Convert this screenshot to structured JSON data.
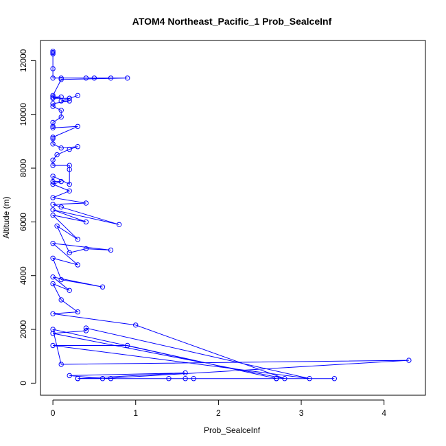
{
  "chart_data": {
    "type": "scatter",
    "title": "ATOM4 Northeast_Pacific_1 Prob_SealceInf",
    "xlabel": "Prob_SealceInf",
    "ylabel": "Altitude (m)",
    "xlim": [
      -0.15,
      4.5
    ],
    "ylim": [
      -450,
      12750
    ],
    "xticks": [
      0,
      1,
      2,
      3,
      4
    ],
    "yticks": [
      0,
      2000,
      4000,
      6000,
      8000,
      10000,
      12000
    ],
    "grid": false,
    "legend": "none",
    "color": "#0000ff",
    "marker": "open-circle",
    "connected": true,
    "series": [
      {
        "x": [
          0,
          0,
          0,
          0,
          0,
          0.1,
          0.4,
          0.5,
          0.7,
          0.9,
          0.1,
          0,
          0,
          0.1,
          0,
          0.2,
          0.3,
          0.1,
          0.2,
          0,
          0,
          0.1,
          0.1,
          0,
          0,
          0,
          0.3,
          0,
          0,
          0,
          0.1,
          0.3,
          0.2,
          0.05,
          0,
          0,
          0.2,
          0.2,
          0.2,
          0,
          0,
          0.1,
          0,
          0.2,
          0,
          0.4,
          0,
          0.1,
          0.8,
          0,
          0.4,
          0,
          0.3,
          0.05,
          0.2,
          0.4,
          0.7,
          0,
          0.3,
          0,
          0.1,
          0.6,
          0,
          0.2,
          0,
          0.1,
          0.3,
          0,
          1.0,
          2.8,
          0,
          0.4,
          0.4,
          3.1,
          0,
          0.9,
          2.7,
          0,
          0.1,
          4.3,
          0.6,
          0.2,
          1.6,
          0.3,
          0.7,
          1.4,
          1.6,
          0.3,
          1.7,
          3.4,
          2.7
        ],
        "y": [
          12350,
          12300,
          12250,
          11700,
          11350,
          11350,
          11350,
          11350,
          11350,
          11350,
          11300,
          10700,
          10650,
          10650,
          10600,
          10600,
          10700,
          10500,
          10500,
          10400,
          10300,
          10150,
          9900,
          9700,
          9550,
          9500,
          9550,
          9150,
          9100,
          8900,
          8750,
          8800,
          8700,
          8500,
          8300,
          8100,
          8100,
          7950,
          7400,
          7700,
          7500,
          7500,
          7400,
          7150,
          6900,
          6700,
          6650,
          6550,
          5900,
          6450,
          6000,
          6250,
          5350,
          5850,
          4850,
          5000,
          4950,
          5200,
          4400,
          4650,
          3850,
          3580,
          3950,
          3450,
          3700,
          3100,
          2650,
          2580,
          2160,
          170,
          1850,
          1950,
          2050,
          170,
          1400,
          1400,
          170,
          2000,
          700,
          850,
          170,
          280,
          380,
          170,
          170,
          170,
          170,
          170,
          170,
          170,
          170
        ]
      }
    ]
  }
}
